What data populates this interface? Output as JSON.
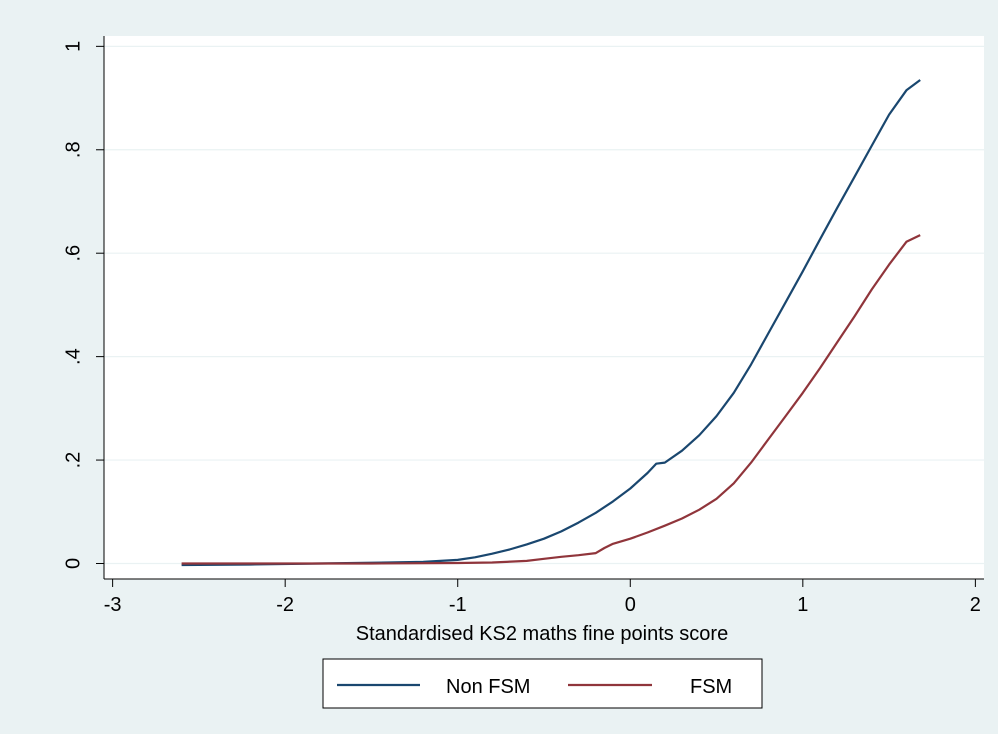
{
  "chart_data": {
    "type": "line",
    "title": "",
    "xlabel": "Standardised KS2 maths fine points score",
    "ylabel": "",
    "xlim": [
      -3.05,
      2.05
    ],
    "ylim": [
      -0.03,
      1.02
    ],
    "xticks": [
      -3,
      -2,
      -1,
      0,
      1,
      2
    ],
    "xtick_labels": [
      "-3",
      "-2",
      "-1",
      "0",
      "1",
      "2"
    ],
    "yticks": [
      0,
      0.2,
      0.4,
      0.6,
      0.8,
      1
    ],
    "ytick_labels": [
      "0",
      ".2",
      ".4",
      ".6",
      ".8",
      "1"
    ],
    "grid": true,
    "legend_position": "bottom",
    "series": [
      {
        "name": "Non FSM",
        "color": "#1a476f",
        "x": [
          -2.6,
          -2.2,
          -1.8,
          -1.4,
          -1.2,
          -1.0,
          -0.9,
          -0.8,
          -0.7,
          -0.6,
          -0.5,
          -0.4,
          -0.3,
          -0.2,
          -0.1,
          0.0,
          0.1,
          0.15,
          0.2,
          0.3,
          0.4,
          0.5,
          0.6,
          0.7,
          0.8,
          0.9,
          1.0,
          1.1,
          1.2,
          1.3,
          1.4,
          1.5,
          1.6,
          1.68
        ],
        "values": [
          -0.003,
          -0.002,
          0.0,
          0.002,
          0.003,
          0.007,
          0.012,
          0.019,
          0.027,
          0.037,
          0.048,
          0.062,
          0.079,
          0.098,
          0.12,
          0.145,
          0.175,
          0.193,
          0.195,
          0.218,
          0.248,
          0.285,
          0.33,
          0.385,
          0.445,
          0.505,
          0.565,
          0.627,
          0.688,
          0.748,
          0.808,
          0.868,
          0.915,
          0.935
        ]
      },
      {
        "name": "FSM",
        "color": "#90353b",
        "x": [
          -2.6,
          -2.0,
          -1.5,
          -1.0,
          -0.8,
          -0.6,
          -0.5,
          -0.4,
          -0.3,
          -0.2,
          -0.15,
          -0.1,
          0.0,
          0.1,
          0.2,
          0.3,
          0.4,
          0.5,
          0.6,
          0.7,
          0.8,
          0.9,
          1.0,
          1.1,
          1.2,
          1.3,
          1.4,
          1.5,
          1.6,
          1.68
        ],
        "values": [
          0.0,
          0.0,
          0.0,
          0.001,
          0.002,
          0.005,
          0.009,
          0.013,
          0.016,
          0.02,
          0.03,
          0.038,
          0.048,
          0.06,
          0.073,
          0.087,
          0.104,
          0.125,
          0.155,
          0.195,
          0.24,
          0.285,
          0.33,
          0.378,
          0.428,
          0.478,
          0.53,
          0.578,
          0.622,
          0.635
        ]
      }
    ]
  }
}
